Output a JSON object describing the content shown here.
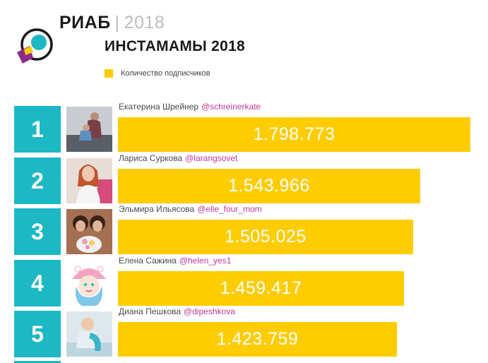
{
  "header": {
    "brand": "РИАБ",
    "separator": "|",
    "year": "2018",
    "title": "ИНСТАМАМЫ 2018"
  },
  "colors": {
    "accent_teal": "#1cb8c4",
    "bar_yellow": "#ffcc00",
    "handle_pink": "#c0399a",
    "logo_purple": "#8e2a8a"
  },
  "chart_data": {
    "type": "bar",
    "orientation": "horizontal",
    "legend": [
      "Количество подписчиков"
    ],
    "legend_position": "top-left",
    "grid": false,
    "categories": [
      "Екатерина Шрейнер",
      "Лариса Суркова",
      "Эльмира Ильясова",
      "Елена Сажина",
      "Диана Пешкова"
    ],
    "series": [
      {
        "name": "Количество подписчиков",
        "values": [
          1798773,
          1543966,
          1505025,
          1459417,
          1423759
        ]
      }
    ],
    "rows": [
      {
        "rank": "1",
        "name": "Екатерина Шрейнер",
        "handle": "@schreinerkate",
        "value": 1798773,
        "value_label": "1.798.773"
      },
      {
        "rank": "2",
        "name": "Лариса Суркова",
        "handle": "@larangsovet",
        "value": 1543966,
        "value_label": "1.543.966"
      },
      {
        "rank": "3",
        "name": "Эльмира Ильясова",
        "handle": "@elle_four_mom",
        "value": 1505025,
        "value_label": "1.505.025"
      },
      {
        "rank": "4",
        "name": "Елена Сажина",
        "handle": "@helen_yes1",
        "value": 1459417,
        "value_label": "1.459.417"
      },
      {
        "rank": "5",
        "name": "Диана Пешкова",
        "handle": "@dipeshkova",
        "value": 1423759,
        "value_label": "1.423.759"
      }
    ]
  }
}
